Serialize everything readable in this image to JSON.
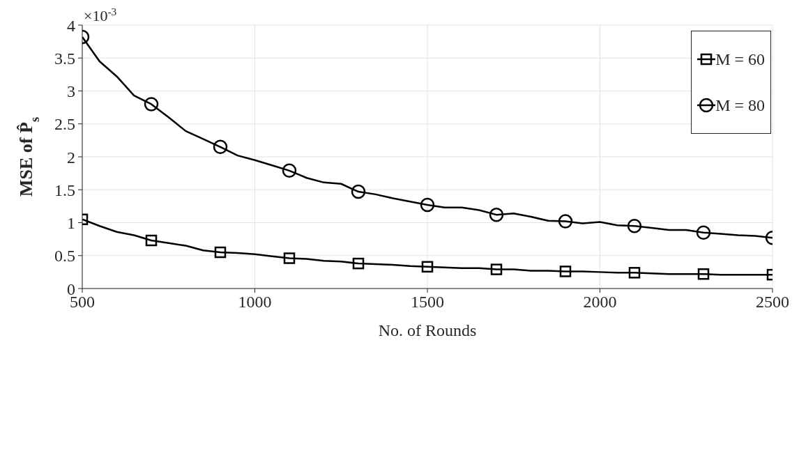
{
  "chart_data": {
    "type": "line",
    "xlabel": "No. of Rounds",
    "ylabel": "MSE of P̂$_{s}$",
    "annotations": [
      "×10$^{-3}$"
    ],
    "x": [
      500,
      550,
      600,
      650,
      700,
      750,
      800,
      850,
      900,
      950,
      1000,
      1050,
      1100,
      1150,
      1200,
      1250,
      1300,
      1350,
      1400,
      1450,
      1500,
      1550,
      1600,
      1650,
      1700,
      1750,
      1800,
      1850,
      1900,
      1950,
      2000,
      2050,
      2100,
      2150,
      2200,
      2250,
      2300,
      2350,
      2400,
      2450,
      2500
    ],
    "series": [
      {
        "name": "M = 60",
        "color": "#000000",
        "values": [
          1.05,
          0.95,
          0.86,
          0.81,
          0.73,
          0.69,
          0.65,
          0.58,
          0.55,
          0.54,
          0.52,
          0.49,
          0.46,
          0.45,
          0.42,
          0.41,
          0.38,
          0.37,
          0.36,
          0.34,
          0.33,
          0.32,
          0.31,
          0.31,
          0.29,
          0.29,
          0.27,
          0.27,
          0.26,
          0.26,
          0.25,
          0.24,
          0.24,
          0.23,
          0.22,
          0.22,
          0.22,
          0.21,
          0.21,
          0.21,
          0.21
        ]
      },
      {
        "name": "M = 80",
        "color": "#000000",
        "values": [
          3.82,
          3.45,
          3.22,
          2.93,
          2.8,
          2.6,
          2.39,
          2.27,
          2.15,
          2.02,
          1.95,
          1.87,
          1.79,
          1.68,
          1.61,
          1.59,
          1.47,
          1.43,
          1.37,
          1.32,
          1.27,
          1.23,
          1.23,
          1.19,
          1.12,
          1.14,
          1.09,
          1.03,
          1.02,
          0.99,
          1.01,
          0.96,
          0.95,
          0.92,
          0.89,
          0.89,
          0.85,
          0.83,
          0.81,
          0.8,
          0.77
        ]
      },
      {
        "type": "scatter",
        "color": "#000000",
        "marker": "square",
        "x": [
          500,
          700,
          900,
          1100,
          1300,
          1500,
          1700,
          1900,
          2100,
          2300,
          2500
        ],
        "values": [
          1.05,
          0.73,
          0.55,
          0.46,
          0.38,
          0.33,
          0.29,
          0.26,
          0.24,
          0.22,
          0.21
        ]
      },
      {
        "type": "scatter",
        "color": "#000000",
        "marker": "circle",
        "x": [
          500,
          700,
          900,
          1100,
          1300,
          1500,
          1700,
          1900,
          2100,
          2300,
          2500
        ],
        "values": [
          3.82,
          2.8,
          2.15,
          1.79,
          1.47,
          1.27,
          1.12,
          1.02,
          0.95,
          0.85,
          0.77
        ]
      }
    ],
    "xlim": [
      500,
      2500
    ],
    "xticks": [
      500,
      1000,
      1500,
      2000,
      2500
    ],
    "ylim": [
      0,
      4
    ],
    "yticks": [
      0,
      0.5,
      1,
      1.5,
      2,
      2.5,
      3,
      3.5,
      4
    ],
    "grid": true,
    "legend": "top right",
    "line_style": "solid"
  }
}
